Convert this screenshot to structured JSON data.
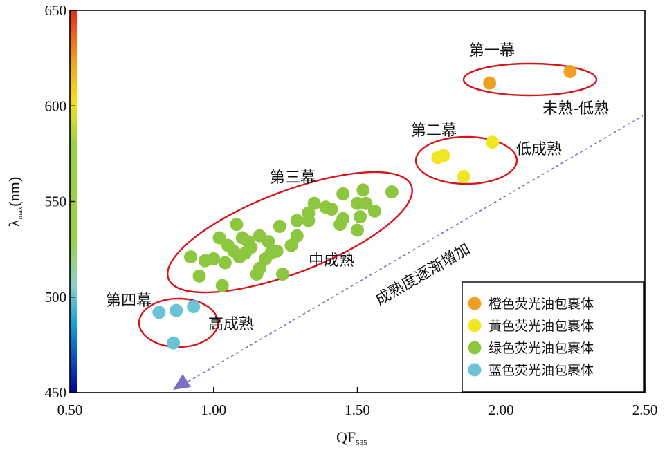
{
  "chart_data": {
    "type": "scatter",
    "xlabel": "QF",
    "xlabel_sub": "535",
    "ylabel": "λ",
    "ylabel_sub": "max",
    "ylabel_unit": "(nm)",
    "xlim": [
      0.5,
      2.5
    ],
    "ylim": [
      450,
      650
    ],
    "x_ticks": [
      "0.50",
      "1.00",
      "1.50",
      "2.00",
      "2.50"
    ],
    "y_ticks": [
      "450",
      "500",
      "550",
      "600",
      "650"
    ],
    "grid": false,
    "legend_position": "bottom-right",
    "series": [
      {
        "name": "橙色荧光油包裹体",
        "color": "#f0a020",
        "points": [
          [
            1.96,
            612
          ],
          [
            2.24,
            618
          ]
        ]
      },
      {
        "name": "黄色荧光油包裹体",
        "color": "#f2e622",
        "points": [
          [
            1.78,
            573
          ],
          [
            1.8,
            574
          ],
          [
            1.87,
            563
          ],
          [
            1.97,
            581
          ]
        ]
      },
      {
        "name": "绿色荧光油包裹体",
        "color": "#8dc63f",
        "points": [
          [
            0.92,
            521
          ],
          [
            0.95,
            511
          ],
          [
            0.97,
            519
          ],
          [
            1.0,
            520
          ],
          [
            1.02,
            531
          ],
          [
            1.03,
            506
          ],
          [
            1.04,
            518
          ],
          [
            1.05,
            527
          ],
          [
            1.07,
            524
          ],
          [
            1.08,
            538
          ],
          [
            1.09,
            521
          ],
          [
            1.1,
            531
          ],
          [
            1.11,
            523
          ],
          [
            1.12,
            529
          ],
          [
            1.13,
            526
          ],
          [
            1.15,
            512
          ],
          [
            1.16,
            515
          ],
          [
            1.16,
            532
          ],
          [
            1.18,
            520
          ],
          [
            1.19,
            529
          ],
          [
            1.2,
            523
          ],
          [
            1.22,
            524
          ],
          [
            1.23,
            537
          ],
          [
            1.24,
            512
          ],
          [
            1.27,
            527
          ],
          [
            1.29,
            532
          ],
          [
            1.29,
            540
          ],
          [
            1.33,
            544
          ],
          [
            1.33,
            540
          ],
          [
            1.35,
            549
          ],
          [
            1.39,
            547
          ],
          [
            1.41,
            546
          ],
          [
            1.44,
            538
          ],
          [
            1.45,
            541
          ],
          [
            1.45,
            554
          ],
          [
            1.5,
            549
          ],
          [
            1.5,
            535
          ],
          [
            1.51,
            542
          ],
          [
            1.52,
            556
          ],
          [
            1.53,
            549
          ],
          [
            1.56,
            545
          ],
          [
            1.62,
            555
          ]
        ]
      },
      {
        "name": "蓝色荧光油包裹体",
        "color": "#6bc4d5",
        "points": [
          [
            0.81,
            492
          ],
          [
            0.87,
            493
          ],
          [
            0.93,
            495
          ],
          [
            0.86,
            476
          ]
        ]
      }
    ],
    "annotations": {
      "act_1": "第一幕",
      "act_2": "第二幕",
      "act_3": "第三幕",
      "act_4": "第四幕",
      "maturity_low_immature": "未熟-低熟",
      "maturity_low": "低成熟",
      "maturity_mid": "中成熟",
      "maturity_high": "高成熟",
      "trend": "成熟度逐渐增加"
    },
    "ellipse_color": "#d7141a",
    "arrow_color": "#7b6fc6",
    "colorbar": [
      "#0000a0",
      "#1aa0d8",
      "#8fd0c8",
      "#9cd04a",
      "#f2e21a",
      "#f0a020",
      "#e8281c"
    ]
  }
}
